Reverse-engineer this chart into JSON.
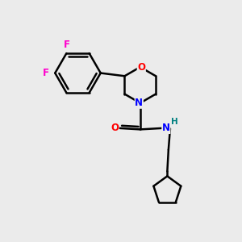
{
  "bg_color": "#ebebeb",
  "bond_color": "#000000",
  "bond_width": 1.8,
  "atom_colors": {
    "F": "#ff00cc",
    "O": "#ff0000",
    "N": "#0000ff",
    "H": "#008080"
  },
  "font_size": 8.5
}
